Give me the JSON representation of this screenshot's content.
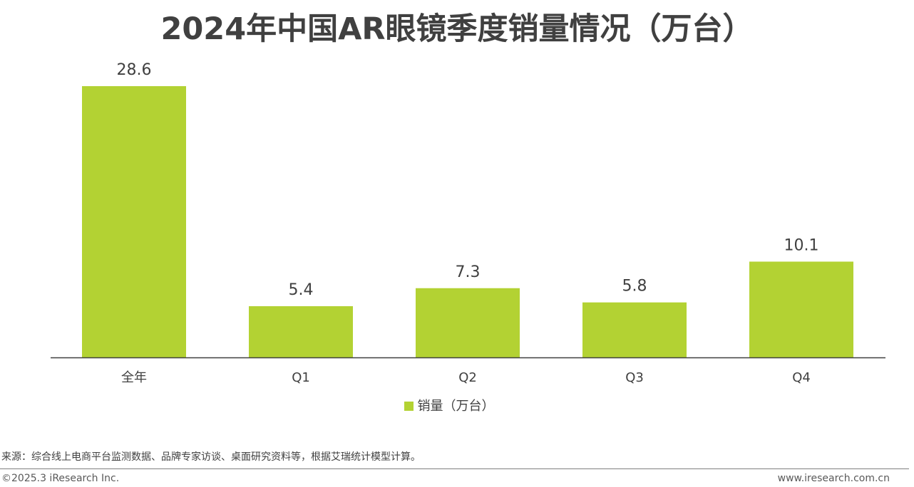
{
  "title": "2024年中国AR眼镜季度销量情况（万台）",
  "legend": {
    "label": "销量（万台）"
  },
  "source": "来源：综合线上电商平台监测数据、品牌专家访谈、桌面研究资料等，根据艾瑞统计模型计算。",
  "footer": {
    "copyright": "©2025.3 iResearch Inc.",
    "website": "www.iresearch.com.cn"
  },
  "colors": {
    "bar": "#b3d233",
    "text": "#404040",
    "axis": "#404040"
  },
  "chart_data": {
    "type": "bar",
    "title": "2024年中国AR眼镜季度销量情况（万台）",
    "categories": [
      "全年",
      "Q1",
      "Q2",
      "Q3",
      "Q4"
    ],
    "series": [
      {
        "name": "销量（万台）",
        "values": [
          28.6,
          5.4,
          7.3,
          5.8,
          10.1
        ]
      }
    ],
    "value_labels": [
      "28.6",
      "5.4",
      "7.3",
      "5.8",
      "10.1"
    ],
    "ylim": [
      0,
      28.6
    ],
    "grid": false,
    "legend_position": "bottom"
  }
}
